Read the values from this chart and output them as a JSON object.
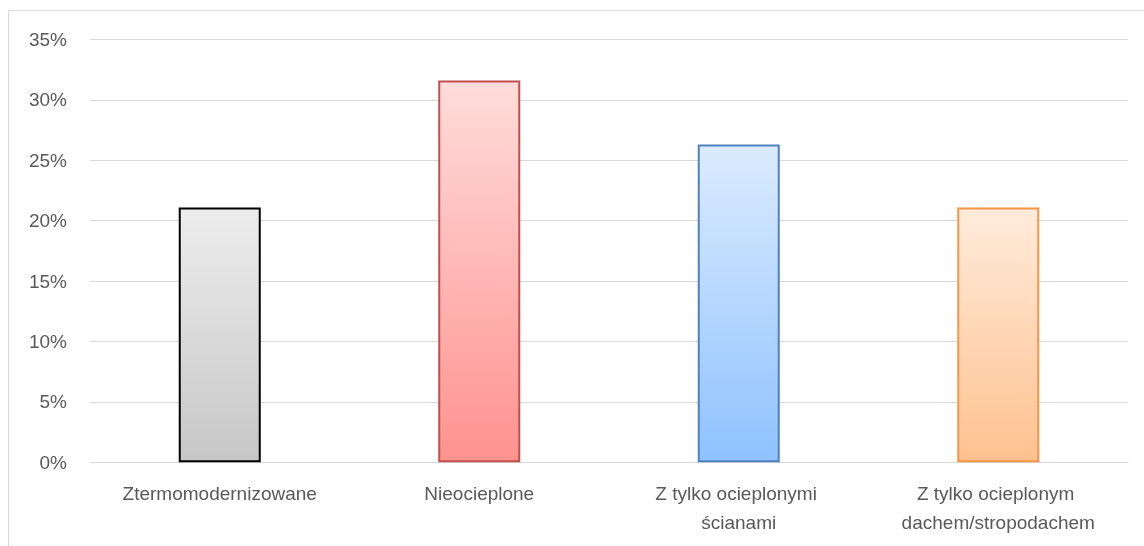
{
  "chart_data": {
    "type": "bar",
    "categories": [
      "Ztermomodernizowane",
      "Nieocieplone",
      "Z tylko ocieplonymi ścianami",
      "Z tylko ocieplonym dachem/stropodachem"
    ],
    "values": [
      21.1,
      31.6,
      26.3,
      21.1
    ],
    "colors": [
      "#000000",
      "#c0504d",
      "#4f81bd",
      "#f79646"
    ],
    "ylim": [
      0,
      35
    ],
    "yticks": [
      {
        "value": 0,
        "label": "0%"
      },
      {
        "value": 5,
        "label": "5%"
      },
      {
        "value": 10,
        "label": "10%"
      },
      {
        "value": 15,
        "label": "15%"
      },
      {
        "value": 20,
        "label": "20%"
      },
      {
        "value": 25,
        "label": "25%"
      },
      {
        "value": 30,
        "label": "30%"
      },
      {
        "value": 35,
        "label": "35%"
      }
    ],
    "grid": "y"
  }
}
